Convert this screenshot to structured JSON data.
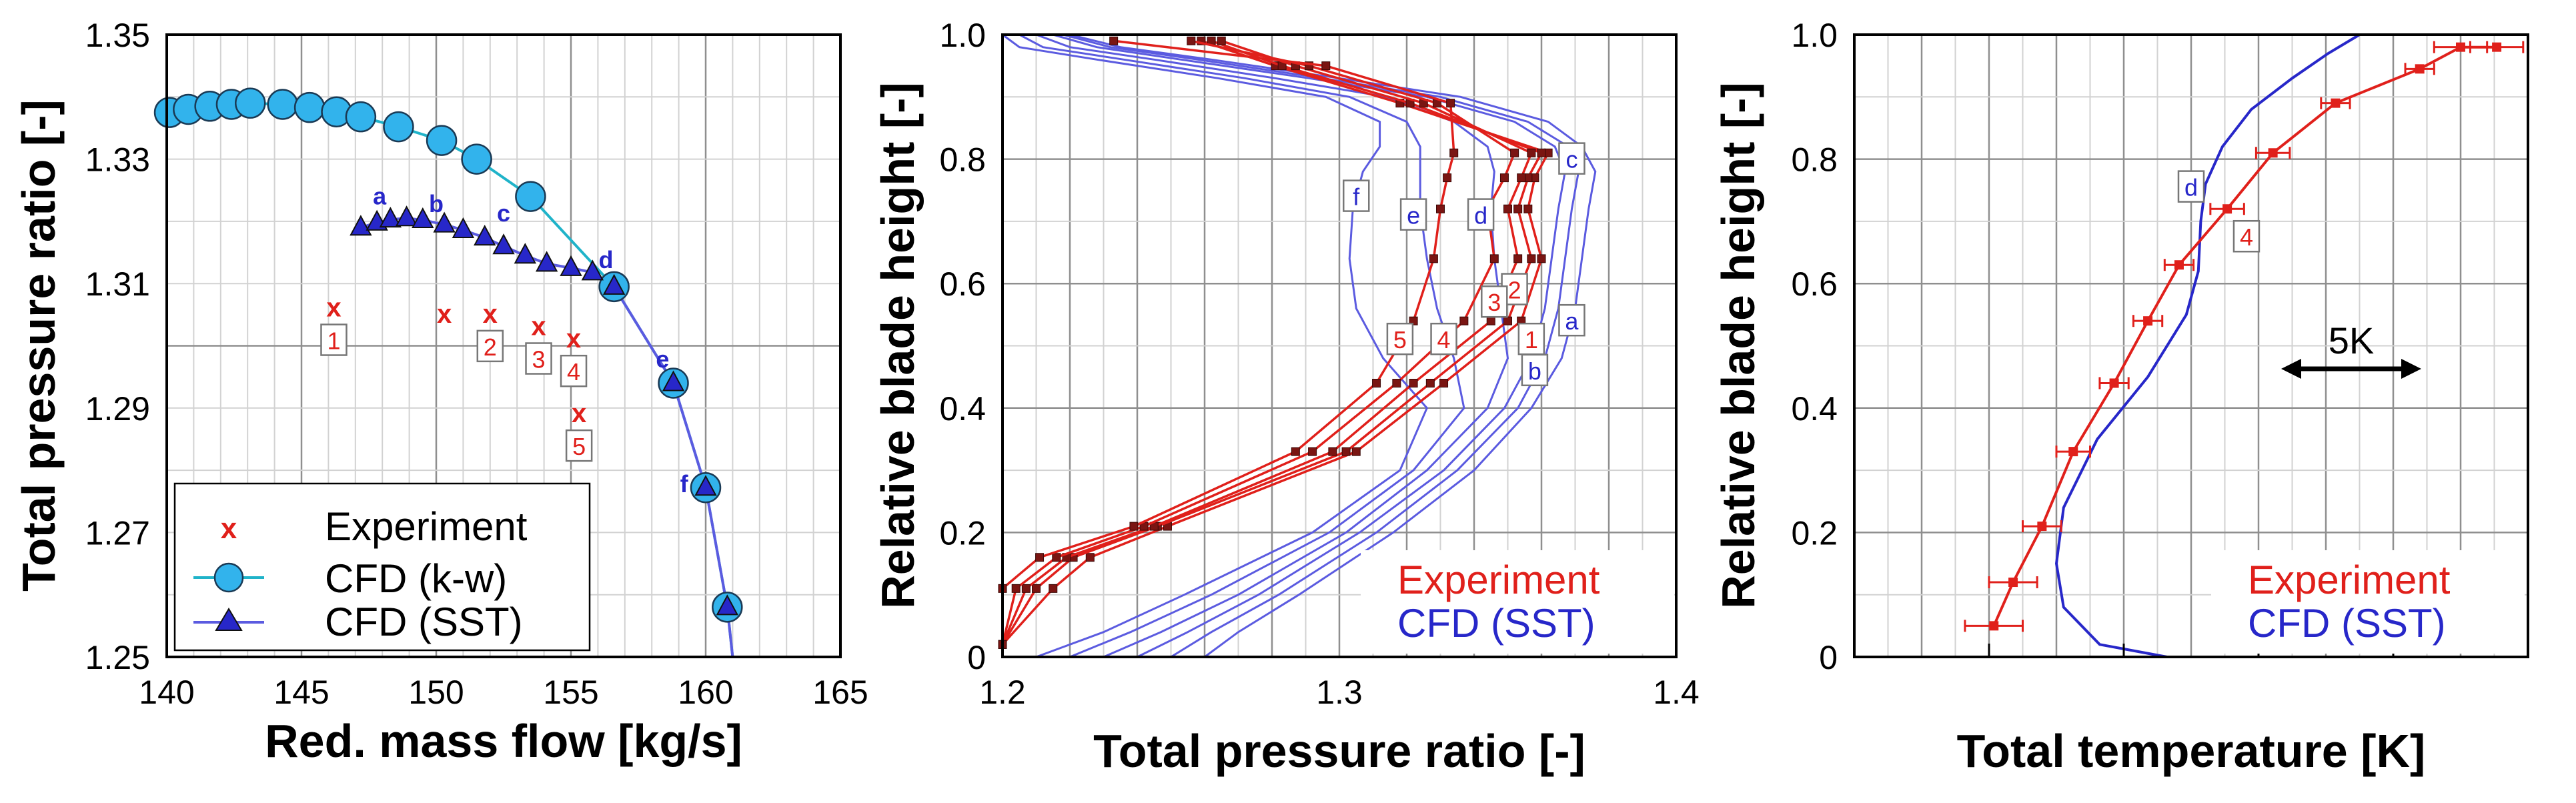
{
  "colors": {
    "experiment": "#e0201b",
    "cfd_kw_line": "#1fb3c9",
    "cfd_kw_fill": "#32b3ec",
    "cfd_sst": "#2727c9",
    "cfd_sst_line": "#5b5be0",
    "exp_marker": "#7a1512"
  },
  "chart_data": [
    {
      "type": "scatter",
      "title": "",
      "xlabel": "Red. mass flow [kg/s]",
      "ylabel": "Total pressure ratio [-]",
      "xlim": [
        140,
        165
      ],
      "ylim": [
        1.25,
        1.35
      ],
      "xticks": [
        "140",
        "145",
        "150",
        "155",
        "160",
        "165"
      ],
      "yticks": [
        "1.25",
        "1.27",
        "1.29",
        "1.31",
        "1.33",
        "1.35"
      ],
      "series": [
        {
          "name": "Experiment",
          "marker": "x",
          "x": [
            146.2,
            150.3,
            152.0,
            153.8,
            155.1,
            155.3
          ],
          "y": [
            1.306,
            1.305,
            1.305,
            1.303,
            1.301,
            1.289
          ],
          "labels": [
            "1",
            "",
            "2",
            "3",
            "4",
            "5"
          ]
        },
        {
          "name": "CFD (k-w)",
          "marker": "circle",
          "x": [
            140.1,
            140.8,
            141.6,
            142.4,
            143.1,
            144.3,
            145.3,
            146.3,
            147.2,
            148.6,
            150.2,
            151.5,
            153.5,
            156.6,
            158.8,
            160.0,
            160.8
          ],
          "y": [
            1.3375,
            1.338,
            1.3385,
            1.3388,
            1.339,
            1.3388,
            1.3383,
            1.3376,
            1.3368,
            1.3352,
            1.333,
            1.33,
            1.324,
            1.3095,
            1.294,
            1.2772,
            1.258
          ]
        },
        {
          "name": "CFD (SST)",
          "marker": "triangle",
          "x": [
            147.2,
            147.8,
            148.3,
            148.9,
            149.5,
            150.3,
            151.0,
            151.8,
            152.5,
            153.3,
            154.1,
            155.0,
            155.8,
            156.6,
            158.8,
            160.0,
            160.8
          ],
          "y": [
            1.319,
            1.3198,
            1.3203,
            1.3205,
            1.3202,
            1.3195,
            1.3186,
            1.3174,
            1.316,
            1.3145,
            1.3132,
            1.3125,
            1.3118,
            1.3095,
            1.294,
            1.2772,
            1.258
          ],
          "point_labels": [
            {
              "text": "a",
              "x": 147.9,
              "y": 1.3227
            },
            {
              "text": "b",
              "x": 150.0,
              "y": 1.3215
            },
            {
              "text": "c",
              "x": 152.5,
              "y": 1.32
            },
            {
              "text": "d",
              "x": 156.3,
              "y": 1.3125
            },
            {
              "text": "e",
              "x": 158.4,
              "y": 1.2965
            },
            {
              "text": "f",
              "x": 159.2,
              "y": 1.2765
            }
          ]
        }
      ],
      "legend": {
        "position": "bottom-left",
        "entries": [
          "Experiment",
          "CFD (k-w)",
          "CFD (SST)"
        ]
      }
    },
    {
      "type": "line",
      "title": "",
      "xlabel": "Total pressure ratio [-]",
      "ylabel": "Relative blade height [-]",
      "xlim": [
        1.2,
        1.4
      ],
      "ylim": [
        0,
        1.0
      ],
      "xticks": [
        "1.2",
        "1.3",
        "1.4"
      ],
      "yticks": [
        "0",
        "0.2",
        "0.4",
        "0.6",
        "0.8",
        "1.0"
      ],
      "heights": [
        0.02,
        0.11,
        0.16,
        0.21,
        0.33,
        0.44,
        0.54,
        0.64,
        0.72,
        0.77,
        0.81,
        0.89,
        0.95,
        0.99
      ],
      "experiment_series": [
        {
          "name": "1",
          "x": [
            1.2,
            1.215,
            1.226,
            1.249,
            1.305,
            1.331,
            1.354,
            1.36,
            1.356,
            1.358,
            1.362,
            1.318,
            1.281,
            1.259
          ]
        },
        {
          "name": "2",
          "x": [
            1.2,
            1.21,
            1.221,
            1.246,
            1.302,
            1.327,
            1.35,
            1.357,
            1.353,
            1.356,
            1.36,
            1.321,
            1.283,
            1.262
          ]
        },
        {
          "name": "3",
          "x": [
            1.2,
            1.207,
            1.219,
            1.245,
            1.298,
            1.322,
            1.345,
            1.353,
            1.35,
            1.354,
            1.357,
            1.325,
            1.287,
            1.265
          ]
        },
        {
          "name": "4",
          "x": [
            1.2,
            1.204,
            1.216,
            1.242,
            1.292,
            1.317,
            1.337,
            1.346,
            1.344,
            1.349,
            1.352,
            1.329,
            1.291,
            1.256
          ]
        },
        {
          "name": "5",
          "x": [
            1.2,
            1.2,
            1.211,
            1.239,
            1.287,
            1.311,
            1.322,
            1.328,
            1.33,
            1.332,
            1.334,
            1.333,
            1.296,
            1.233
          ]
        }
      ],
      "cfd_heights": [
        0.0,
        0.04,
        0.1,
        0.2,
        0.3,
        0.4,
        0.48,
        0.56,
        0.64,
        0.72,
        0.78,
        0.82,
        0.86,
        0.9,
        0.93,
        0.96,
        0.98,
        1.0
      ],
      "cfd_series": [
        {
          "name": "a",
          "x": [
            1.26,
            1.27,
            1.288,
            1.316,
            1.34,
            1.357,
            1.366,
            1.37,
            1.372,
            1.374,
            1.376,
            1.372,
            1.362,
            1.336,
            1.3,
            1.262,
            1.235,
            1.22
          ]
        },
        {
          "name": "b",
          "x": [
            1.25,
            1.262,
            1.282,
            1.311,
            1.335,
            1.353,
            1.361,
            1.365,
            1.367,
            1.369,
            1.371,
            1.368,
            1.356,
            1.33,
            1.295,
            1.258,
            1.232,
            1.218
          ]
        },
        {
          "name": "c",
          "x": [
            1.24,
            1.255,
            1.276,
            1.306,
            1.331,
            1.349,
            1.357,
            1.361,
            1.363,
            1.365,
            1.367,
            1.364,
            1.352,
            1.326,
            1.291,
            1.253,
            1.228,
            1.215
          ]
        },
        {
          "name": "d",
          "x": [
            1.23,
            1.247,
            1.27,
            1.302,
            1.326,
            1.344,
            1.35,
            1.348,
            1.346,
            1.345,
            1.346,
            1.344,
            1.334,
            1.314,
            1.281,
            1.245,
            1.22,
            1.21
          ]
        },
        {
          "name": "e",
          "x": [
            1.22,
            1.238,
            1.262,
            1.297,
            1.322,
            1.337,
            1.334,
            1.329,
            1.326,
            1.324,
            1.324,
            1.324,
            1.32,
            1.303,
            1.272,
            1.236,
            1.212,
            1.205
          ]
        },
        {
          "name": "f",
          "x": [
            1.21,
            1.23,
            1.254,
            1.292,
            1.318,
            1.326,
            1.313,
            1.305,
            1.303,
            1.304,
            1.307,
            1.312,
            1.312,
            1.296,
            1.264,
            1.228,
            1.205,
            1.2
          ]
        }
      ],
      "legend": {
        "position": "bottom-right",
        "entries": [
          "Experiment",
          "CFD (SST)"
        ]
      }
    },
    {
      "type": "line",
      "title": "",
      "xlabel": "Total temperature [K]",
      "ylabel": "Relative blade height [-]",
      "xlim": [
        0,
        28
      ],
      "ylim": [
        0,
        1.0
      ],
      "xticks": [],
      "yticks": [
        "0",
        "0.2",
        "0.4",
        "0.6",
        "0.8",
        "1.0"
      ],
      "scale_bar_K": 5,
      "scale_bar_label": "5K",
      "experiment": {
        "name": "4",
        "T": [
          5.8,
          6.6,
          7.8,
          9.1,
          10.8,
          12.2,
          13.5,
          15.5,
          17.4,
          20.0,
          23.5,
          25.2,
          26.7
        ],
        "h": [
          0.05,
          0.12,
          0.21,
          0.33,
          0.44,
          0.54,
          0.63,
          0.72,
          0.81,
          0.89,
          0.945,
          0.98,
          0.98
        ],
        "T_error": [
          1.2,
          1.0,
          0.8,
          0.7,
          0.6,
          0.6,
          0.6,
          0.7,
          0.7,
          0.6,
          0.6,
          1.1,
          1.1
        ]
      },
      "cfd": {
        "name": "d",
        "T": [
          13.0,
          10.2,
          8.7,
          8.4,
          8.7,
          10.1,
          12.2,
          13.8,
          14.3,
          14.4,
          14.6,
          15.3,
          16.5,
          18.2,
          19.7,
          21.0
        ],
        "h": [
          0.0,
          0.02,
          0.08,
          0.15,
          0.24,
          0.35,
          0.45,
          0.55,
          0.62,
          0.7,
          0.76,
          0.82,
          0.88,
          0.93,
          0.97,
          1.0
        ]
      },
      "legend": {
        "position": "bottom-right",
        "entries": [
          "Experiment",
          "CFD (SST)"
        ]
      }
    }
  ]
}
